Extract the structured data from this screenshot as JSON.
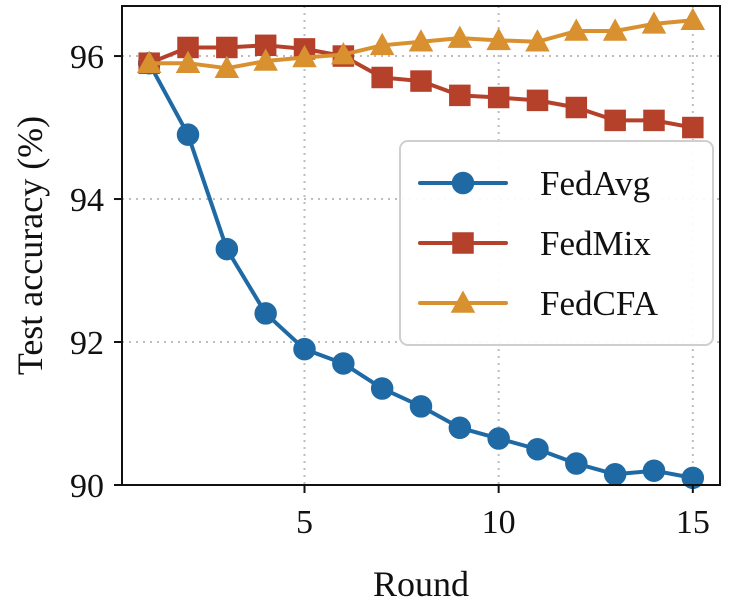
{
  "chart_data": {
    "type": "line",
    "xlabel": "Round",
    "ylabel": "Test accuracy (%)",
    "x": [
      1,
      2,
      3,
      4,
      5,
      6,
      7,
      8,
      9,
      10,
      11,
      12,
      13,
      14,
      15
    ],
    "xlim": [
      0.3,
      15.7
    ],
    "ylim": [
      90,
      96.7
    ],
    "xticks": [
      5,
      10,
      15
    ],
    "yticks": [
      90,
      92,
      94,
      96
    ],
    "grid": true,
    "legend_position": "right",
    "series": [
      {
        "name": "FedAvg",
        "color": "#1f6aa5",
        "marker": "circle",
        "values": [
          95.9,
          94.9,
          93.3,
          92.4,
          91.9,
          91.7,
          91.35,
          91.1,
          90.8,
          90.65,
          90.5,
          90.3,
          90.15,
          90.2,
          90.1
        ]
      },
      {
        "name": "FedMix",
        "color": "#b5412b",
        "marker": "square",
        "values": [
          95.9,
          96.12,
          96.12,
          96.15,
          96.1,
          96.0,
          95.7,
          95.65,
          95.45,
          95.42,
          95.38,
          95.28,
          95.1,
          95.1,
          95.0
        ]
      },
      {
        "name": "FedCFA",
        "color": "#d9902f",
        "marker": "triangle",
        "values": [
          95.9,
          95.9,
          95.83,
          95.93,
          95.98,
          96.02,
          96.15,
          96.2,
          96.25,
          96.22,
          96.2,
          96.35,
          96.35,
          96.45,
          96.5
        ]
      }
    ]
  }
}
